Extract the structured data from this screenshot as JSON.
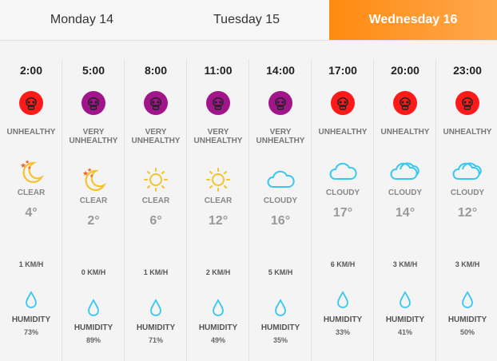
{
  "tabs": [
    {
      "label": "Monday 14"
    },
    {
      "label": "Tuesday 15"
    },
    {
      "label": "Wednesday 16",
      "active": true
    }
  ],
  "colors": {
    "accent": "#ff8a10",
    "unhealthy": "#ff1a1a",
    "very_unhealthy": "#a0168a",
    "weather_icon": "#38c8f0",
    "sun": "#f5c32c"
  },
  "labels": {
    "humidity": "HUMIDITY"
  },
  "hours": [
    {
      "time": "2:00",
      "aqi": "UNHEALTHY",
      "condition": "CLEAR",
      "icon": "moon-stars-icon",
      "temp": "4°",
      "wind": "1 KM/H",
      "humidity": "73%"
    },
    {
      "time": "5:00",
      "aqi": "VERY UNHEALTHY",
      "condition": "CLEAR",
      "icon": "moon-stars-icon",
      "temp": "2°",
      "wind": "0 KM/H",
      "humidity": "89%"
    },
    {
      "time": "8:00",
      "aqi": "VERY UNHEALTHY",
      "condition": "CLEAR",
      "icon": "sun-icon",
      "temp": "6°",
      "wind": "1 KM/H",
      "humidity": "71%"
    },
    {
      "time": "11:00",
      "aqi": "VERY UNHEALTHY",
      "condition": "CLEAR",
      "icon": "sun-icon",
      "temp": "12°",
      "wind": "2 KM/H",
      "humidity": "49%"
    },
    {
      "time": "14:00",
      "aqi": "VERY UNHEALTHY",
      "condition": "CLOUDY",
      "icon": "cloud-icon",
      "temp": "16°",
      "wind": "5 KM/H",
      "humidity": "35%"
    },
    {
      "time": "17:00",
      "aqi": "UNHEALTHY",
      "condition": "CLOUDY",
      "icon": "cloud-icon",
      "temp": "17°",
      "wind": "6 KM/H",
      "humidity": "33%"
    },
    {
      "time": "20:00",
      "aqi": "UNHEALTHY",
      "condition": "CLOUDY",
      "icon": "clouds-icon",
      "temp": "14°",
      "wind": "3 KM/H",
      "humidity": "41%"
    },
    {
      "time": "23:00",
      "aqi": "UNHEALTHY",
      "condition": "CLOUDY",
      "icon": "clouds-icon",
      "temp": "12°",
      "wind": "3 KM/H",
      "humidity": "50%"
    }
  ]
}
